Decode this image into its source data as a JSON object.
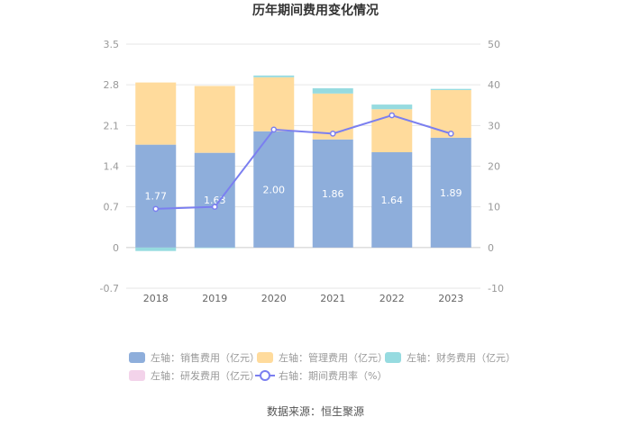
{
  "chart_data": {
    "type": "bar",
    "title": "历年期间费用变化情况",
    "categories": [
      "2018",
      "2019",
      "2020",
      "2021",
      "2022",
      "2023"
    ],
    "left_axis": {
      "ticks": [
        -0.7,
        0,
        0.7,
        1.4,
        2.1,
        2.8,
        3.5
      ],
      "labels": [
        "-0.7",
        "0",
        "0.7",
        "1.4",
        "2.1",
        "2.8",
        "3.5"
      ],
      "ylim": [
        -0.7,
        3.5
      ]
    },
    "right_axis": {
      "ticks": [
        -10,
        0,
        10,
        20,
        30,
        40,
        50
      ],
      "labels": [
        "-10",
        "0",
        "10",
        "20",
        "30",
        "40",
        "50"
      ],
      "ylim": [
        -10,
        50
      ]
    },
    "series": [
      {
        "name": "左轴：销售费用（亿元）",
        "type": "bar",
        "axis": "left",
        "color": "#8eaedb",
        "values": [
          1.77,
          1.63,
          2.0,
          1.86,
          1.64,
          1.89
        ],
        "labels": [
          "1.77",
          "1.63",
          "2.00",
          "1.86",
          "1.64",
          "1.89"
        ]
      },
      {
        "name": "左轴：管理费用（亿元）",
        "type": "bar",
        "axis": "left",
        "color": "#ffdb9c",
        "values": [
          1.07,
          1.15,
          0.93,
          0.79,
          0.74,
          0.82
        ]
      },
      {
        "name": "左轴：财务费用（亿元）",
        "type": "bar",
        "axis": "left",
        "color": "#96dbe0",
        "values": [
          -0.06,
          -0.01,
          0.03,
          0.09,
          0.08,
          0.02
        ]
      },
      {
        "name": "左轴：研发费用（亿元）",
        "type": "bar",
        "axis": "left",
        "color": "#f3d3ea",
        "values": [
          0,
          0,
          0,
          0,
          0,
          0
        ]
      },
      {
        "name": "右轴：期间费用率（%）",
        "type": "line",
        "axis": "right",
        "color": "#7b7ff0",
        "values": [
          9.5,
          10.0,
          29.0,
          28.0,
          32.5,
          28.0
        ]
      }
    ],
    "legend_position": "bottom"
  },
  "footer": {
    "source": "数据来源：恒生聚源"
  }
}
